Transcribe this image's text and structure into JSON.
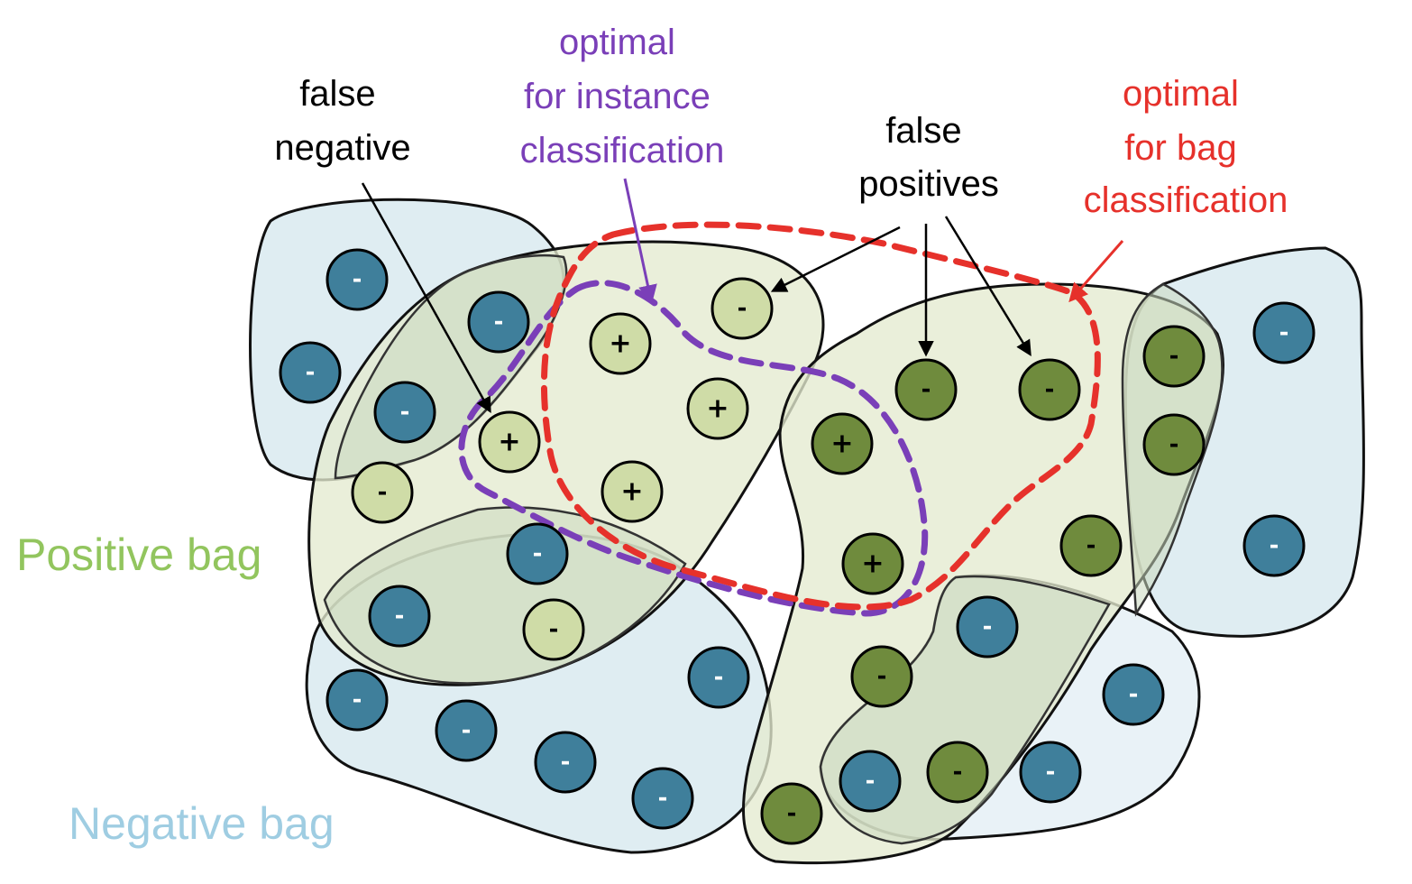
{
  "annotations": {
    "false_negative": [
      "false",
      "negative"
    ],
    "optimal_instance": [
      "optimal",
      "for instance",
      "classification"
    ],
    "false_positives": [
      "false",
      "positives"
    ],
    "optimal_bag": [
      "optimal",
      "for bag",
      "classification"
    ]
  },
  "legend": {
    "positive_bag": "Positive bag",
    "negative_bag": "Negative bag"
  },
  "symbols": {
    "positive": "+",
    "negative": "-"
  },
  "colors": {
    "negative_instance": "#3f7f9b",
    "positive_bag_instance": "#cfdca7",
    "dark_green_instance": "#6f8b3d",
    "positive_bag_label": "#92c55e",
    "negative_bag_label": "#9fcde2",
    "instance_boundary": "#7a3fb8",
    "bag_boundary": "#e6312b"
  }
}
